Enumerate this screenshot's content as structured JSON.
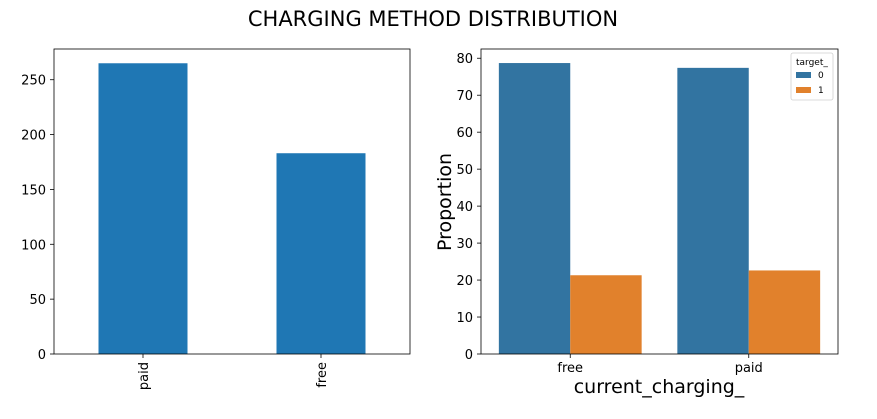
{
  "figure": {
    "title": "CHARGING METHOD DISTRIBUTION"
  },
  "chart_data": [
    {
      "type": "bar",
      "title": "",
      "xlabel": "",
      "ylabel": "",
      "categories": [
        "paid",
        "free"
      ],
      "values": [
        265,
        183
      ],
      "ylim": [
        0,
        278
      ],
      "yticks": [
        0,
        50,
        100,
        150,
        200,
        250
      ],
      "xtick_rotation": "vertical",
      "color": "#1f77b4",
      "grid": false,
      "legend": "none"
    },
    {
      "type": "bar",
      "title": "",
      "xlabel": "current_charging_",
      "ylabel": "Proportion",
      "categories": [
        "free",
        "paid"
      ],
      "series": [
        {
          "name": "0",
          "values": [
            78.7,
            77.4
          ],
          "color": "#3274a1"
        },
        {
          "name": "1",
          "values": [
            21.3,
            22.6
          ],
          "color": "#e1812c"
        }
      ],
      "ylim": [
        0,
        82.5
      ],
      "yticks": [
        0,
        10,
        20,
        30,
        40,
        50,
        60,
        70,
        80
      ],
      "legend_title": "target_",
      "legend": "top-right",
      "grid": false
    }
  ]
}
